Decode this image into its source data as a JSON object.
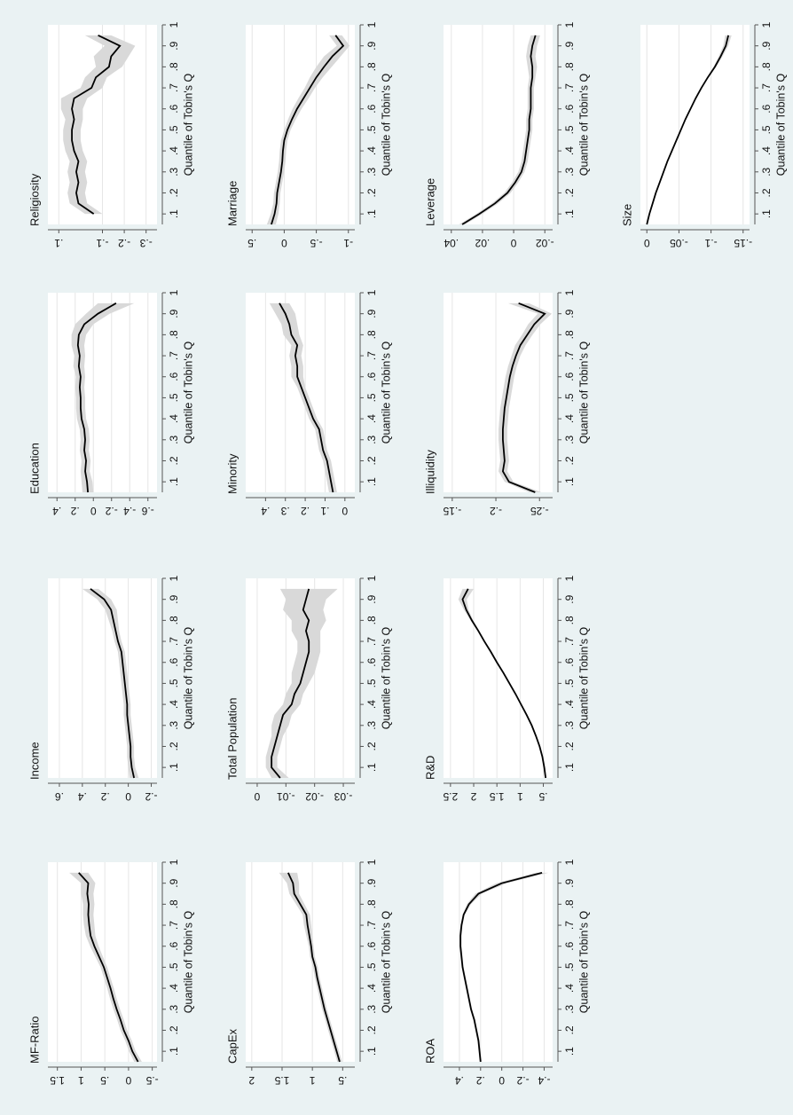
{
  "figure": {
    "xlabel": "Quantile of Tobin's Q",
    "x_ticks": [
      0.1,
      0.2,
      0.3,
      0.4,
      0.5,
      0.6,
      0.7,
      0.8,
      0.9,
      1
    ],
    "x_tick_labels": [
      ".1",
      ".2",
      ".3",
      ".4",
      ".5",
      ".6",
      ".7",
      ".8",
      ".9",
      "1"
    ],
    "xlim": [
      0.05,
      1.0
    ],
    "colors": {
      "background": "#eaf2f3",
      "plot": "#ffffff",
      "line": "#000000",
      "ci_band": "#d9d9d9",
      "grid": "#e6e6e6"
    },
    "orientation": "rotated 90 degrees counter-clockwise"
  },
  "chart_data": [
    {
      "type": "line",
      "title": "Religiosity",
      "ylim": [
        -0.35,
        0.15
      ],
      "y_ticks": [
        0.1,
        -0.1,
        -0.2,
        -0.3
      ],
      "y_tick_labels": [
        ".1",
        "-.1",
        "-.2",
        "-.3"
      ],
      "x": [
        0.1,
        0.15,
        0.2,
        0.25,
        0.3,
        0.35,
        0.4,
        0.45,
        0.5,
        0.55,
        0.6,
        0.65,
        0.7,
        0.75,
        0.8,
        0.85,
        0.9,
        0.95
      ],
      "y": [
        -0.06,
        0.01,
        0.02,
        0.01,
        0.02,
        0.01,
        0.03,
        0.04,
        0.04,
        0.03,
        0.04,
        0.03,
        -0.05,
        -0.07,
        -0.13,
        -0.14,
        -0.18,
        -0.08
      ],
      "ci_lower": [
        -0.1,
        -0.03,
        -0.02,
        -0.03,
        -0.02,
        -0.03,
        -0.01,
        0.0,
        0.0,
        -0.01,
        -0.01,
        -0.03,
        -0.1,
        -0.12,
        -0.19,
        -0.22,
        -0.25,
        -0.14
      ],
      "ci_upper": [
        -0.02,
        0.05,
        0.06,
        0.05,
        0.06,
        0.05,
        0.07,
        0.08,
        0.08,
        0.07,
        0.09,
        0.09,
        0.0,
        -0.02,
        -0.07,
        -0.06,
        -0.11,
        -0.02
      ]
    },
    {
      "type": "line",
      "title": "Education",
      "ylim": [
        -0.7,
        0.5
      ],
      "y_ticks": [
        0.4,
        0.2,
        0,
        -0.2,
        -0.4,
        -0.6
      ],
      "y_tick_labels": [
        ".4",
        ".2",
        "0",
        "-.2",
        "-.4",
        "-.6"
      ],
      "x": [
        0.05,
        0.1,
        0.15,
        0.2,
        0.25,
        0.3,
        0.35,
        0.4,
        0.45,
        0.5,
        0.55,
        0.6,
        0.65,
        0.7,
        0.75,
        0.8,
        0.85,
        0.9,
        0.95
      ],
      "y": [
        0.06,
        0.07,
        0.09,
        0.08,
        0.1,
        0.09,
        0.1,
        0.13,
        0.14,
        0.14,
        0.15,
        0.14,
        0.16,
        0.15,
        0.17,
        0.16,
        0.1,
        -0.05,
        -0.25
      ],
      "ci_lower": [
        0.0,
        0.01,
        0.04,
        0.03,
        0.05,
        0.04,
        0.05,
        0.08,
        0.09,
        0.09,
        0.1,
        0.09,
        0.1,
        0.09,
        0.1,
        0.08,
        0.0,
        -0.18,
        -0.45
      ],
      "ci_upper": [
        0.12,
        0.13,
        0.14,
        0.13,
        0.15,
        0.14,
        0.15,
        0.18,
        0.19,
        0.19,
        0.2,
        0.19,
        0.22,
        0.21,
        0.24,
        0.24,
        0.2,
        0.08,
        -0.05
      ]
    },
    {
      "type": "line",
      "title": "Income",
      "ylim": [
        -0.25,
        0.7
      ],
      "y_ticks": [
        0.6,
        0.4,
        0.2,
        0,
        -0.2
      ],
      "y_tick_labels": [
        ".6",
        ".4",
        ".2",
        "0",
        "-.2"
      ],
      "x": [
        0.05,
        0.1,
        0.15,
        0.2,
        0.25,
        0.3,
        0.35,
        0.4,
        0.45,
        0.5,
        0.55,
        0.6,
        0.65,
        0.7,
        0.75,
        0.8,
        0.85,
        0.9,
        0.95
      ],
      "y": [
        -0.05,
        -0.03,
        -0.02,
        -0.02,
        -0.01,
        0.0,
        0.01,
        0.01,
        0.02,
        0.03,
        0.04,
        0.05,
        0.06,
        0.09,
        0.11,
        0.13,
        0.15,
        0.21,
        0.33
      ],
      "ci_lower": [
        -0.09,
        -0.06,
        -0.05,
        -0.05,
        -0.04,
        -0.03,
        -0.02,
        -0.02,
        -0.01,
        0.0,
        0.01,
        0.02,
        0.03,
        0.06,
        0.08,
        0.09,
        0.1,
        0.15,
        0.26
      ],
      "ci_upper": [
        -0.01,
        0.0,
        0.01,
        0.01,
        0.02,
        0.03,
        0.04,
        0.04,
        0.05,
        0.06,
        0.07,
        0.08,
        0.09,
        0.12,
        0.14,
        0.17,
        0.2,
        0.27,
        0.4
      ]
    },
    {
      "type": "line",
      "title": "MF-Ratio",
      "ylim": [
        -0.6,
        1.7
      ],
      "y_ticks": [
        1.5,
        1,
        0.5,
        0,
        -0.5
      ],
      "y_tick_labels": [
        "1.5",
        "1",
        ".5",
        "0",
        "-.5"
      ],
      "x": [
        0.05,
        0.1,
        0.15,
        0.2,
        0.25,
        0.3,
        0.35,
        0.4,
        0.45,
        0.5,
        0.55,
        0.6,
        0.65,
        0.7,
        0.75,
        0.8,
        0.85,
        0.9,
        0.95
      ],
      "y": [
        -0.2,
        -0.08,
        0.0,
        0.1,
        0.17,
        0.25,
        0.32,
        0.38,
        0.45,
        0.52,
        0.62,
        0.72,
        0.8,
        0.83,
        0.85,
        0.84,
        0.87,
        0.85,
        1.05
      ],
      "ci_lower": [
        -0.28,
        -0.15,
        -0.07,
        0.03,
        0.1,
        0.18,
        0.25,
        0.31,
        0.38,
        0.45,
        0.54,
        0.63,
        0.7,
        0.72,
        0.74,
        0.72,
        0.74,
        0.7,
        0.85
      ],
      "ci_upper": [
        -0.12,
        -0.01,
        0.07,
        0.17,
        0.24,
        0.32,
        0.39,
        0.45,
        0.52,
        0.59,
        0.7,
        0.81,
        0.9,
        0.94,
        0.96,
        0.96,
        1.0,
        1.0,
        1.25
      ]
    },
    {
      "type": "line",
      "title": "Marriage",
      "ylim": [
        -1.1,
        0.6
      ],
      "y_ticks": [
        0.5,
        0,
        -0.5,
        -1
      ],
      "y_tick_labels": [
        ".5",
        "0",
        "-.5",
        "-1"
      ],
      "x": [
        0.05,
        0.1,
        0.15,
        0.2,
        0.25,
        0.3,
        0.35,
        0.4,
        0.45,
        0.5,
        0.55,
        0.6,
        0.65,
        0.7,
        0.75,
        0.8,
        0.85,
        0.9,
        0.95
      ],
      "y": [
        0.2,
        0.15,
        0.12,
        0.11,
        0.08,
        0.05,
        0.03,
        0.02,
        0.0,
        -0.05,
        -0.12,
        -0.2,
        -0.3,
        -0.4,
        -0.5,
        -0.62,
        -0.75,
        -0.92,
        -0.8
      ],
      "ci_lower": [
        0.13,
        0.09,
        0.07,
        0.06,
        0.03,
        0.0,
        -0.02,
        -0.03,
        -0.05,
        -0.1,
        -0.18,
        -0.27,
        -0.38,
        -0.48,
        -0.6,
        -0.74,
        -0.88,
        -1.02,
        -0.9
      ],
      "ci_upper": [
        0.27,
        0.21,
        0.17,
        0.16,
        0.13,
        0.1,
        0.08,
        0.07,
        0.05,
        0.0,
        -0.06,
        -0.13,
        -0.22,
        -0.32,
        -0.4,
        -0.5,
        -0.62,
        -0.82,
        -0.7
      ]
    },
    {
      "type": "line",
      "title": "Minority",
      "ylim": [
        -0.05,
        0.5
      ],
      "y_ticks": [
        0.4,
        0.3,
        0.2,
        0.1,
        0
      ],
      "y_tick_labels": [
        ".4",
        ".3",
        ".2",
        ".1",
        "0"
      ],
      "x": [
        0.05,
        0.1,
        0.15,
        0.2,
        0.25,
        0.3,
        0.35,
        0.4,
        0.45,
        0.5,
        0.55,
        0.6,
        0.65,
        0.7,
        0.75,
        0.8,
        0.85,
        0.9,
        0.95
      ],
      "y": [
        0.06,
        0.07,
        0.08,
        0.09,
        0.11,
        0.12,
        0.13,
        0.16,
        0.18,
        0.2,
        0.22,
        0.24,
        0.24,
        0.25,
        0.24,
        0.27,
        0.28,
        0.3,
        0.33
      ],
      "ci_lower": [
        0.04,
        0.05,
        0.06,
        0.07,
        0.09,
        0.1,
        0.11,
        0.14,
        0.16,
        0.18,
        0.2,
        0.21,
        0.21,
        0.22,
        0.21,
        0.23,
        0.24,
        0.25,
        0.28
      ],
      "ci_upper": [
        0.08,
        0.09,
        0.1,
        0.11,
        0.13,
        0.14,
        0.15,
        0.18,
        0.2,
        0.22,
        0.24,
        0.27,
        0.27,
        0.28,
        0.27,
        0.31,
        0.32,
        0.35,
        0.38
      ]
    },
    {
      "type": "line",
      "title": "Total Population",
      "ylim": [
        -0.034,
        0.004
      ],
      "y_ticks": [
        0,
        -0.01,
        -0.02,
        -0.03
      ],
      "y_tick_labels": [
        "0",
        "-.01",
        "-.02",
        "-.03"
      ],
      "x": [
        0.05,
        0.1,
        0.15,
        0.2,
        0.25,
        0.3,
        0.35,
        0.4,
        0.45,
        0.5,
        0.55,
        0.6,
        0.65,
        0.7,
        0.75,
        0.8,
        0.85,
        0.9,
        0.95
      ],
      "y": [
        -0.008,
        -0.005,
        -0.005,
        -0.006,
        -0.007,
        -0.008,
        -0.009,
        -0.012,
        -0.013,
        -0.015,
        -0.016,
        -0.017,
        -0.018,
        -0.018,
        -0.017,
        -0.018,
        -0.016,
        -0.017,
        -0.018
      ],
      "ci_lower": [
        -0.011,
        -0.007,
        -0.007,
        -0.008,
        -0.009,
        -0.011,
        -0.012,
        -0.015,
        -0.016,
        -0.018,
        -0.02,
        -0.021,
        -0.022,
        -0.022,
        -0.022,
        -0.024,
        -0.023,
        -0.024,
        -0.028
      ],
      "ci_upper": [
        -0.005,
        -0.003,
        -0.003,
        -0.004,
        -0.005,
        -0.005,
        -0.006,
        -0.009,
        -0.01,
        -0.012,
        -0.012,
        -0.013,
        -0.014,
        -0.014,
        -0.012,
        -0.012,
        -0.009,
        -0.01,
        -0.008
      ]
    },
    {
      "type": "line",
      "title": "CapEx",
      "ylim": [
        0.3,
        2.1
      ],
      "y_ticks": [
        2,
        1.5,
        1,
        0.5
      ],
      "y_tick_labels": [
        "2",
        "1.5",
        "1",
        ".5"
      ],
      "x": [
        0.05,
        0.1,
        0.15,
        0.2,
        0.25,
        0.3,
        0.35,
        0.4,
        0.45,
        0.5,
        0.55,
        0.6,
        0.65,
        0.7,
        0.75,
        0.8,
        0.85,
        0.9,
        0.95
      ],
      "y": [
        0.55,
        0.6,
        0.65,
        0.7,
        0.75,
        0.8,
        0.84,
        0.88,
        0.92,
        0.95,
        1.0,
        1.02,
        1.05,
        1.08,
        1.1,
        1.2,
        1.3,
        1.32,
        1.4
      ],
      "ci_lower": [
        0.51,
        0.56,
        0.61,
        0.66,
        0.71,
        0.76,
        0.8,
        0.84,
        0.88,
        0.91,
        0.96,
        0.98,
        1.0,
        1.02,
        1.04,
        1.13,
        1.22,
        1.22,
        1.25
      ],
      "ci_upper": [
        0.59,
        0.64,
        0.69,
        0.74,
        0.79,
        0.84,
        0.88,
        0.92,
        0.96,
        0.99,
        1.04,
        1.06,
        1.1,
        1.14,
        1.16,
        1.27,
        1.38,
        1.42,
        1.55
      ]
    },
    {
      "type": "line",
      "title": "Leverage",
      "ylim": [
        -0.025,
        0.045
      ],
      "y_ticks": [
        0.04,
        0.02,
        0,
        -0.02
      ],
      "y_tick_labels": [
        ".04",
        ".02",
        "0",
        "-.02"
      ],
      "x": [
        0.05,
        0.1,
        0.15,
        0.2,
        0.25,
        0.3,
        0.35,
        0.4,
        0.45,
        0.5,
        0.55,
        0.6,
        0.65,
        0.7,
        0.75,
        0.8,
        0.85,
        0.9,
        0.95
      ],
      "y": [
        0.033,
        0.022,
        0.012,
        0.004,
        -0.001,
        -0.005,
        -0.007,
        -0.008,
        -0.009,
        -0.01,
        -0.01,
        -0.011,
        -0.011,
        -0.011,
        -0.012,
        -0.012,
        -0.011,
        -0.012,
        -0.014
      ],
      "ci_lower": [
        0.031,
        0.02,
        0.01,
        0.002,
        -0.003,
        -0.007,
        -0.009,
        -0.01,
        -0.011,
        -0.012,
        -0.012,
        -0.013,
        -0.013,
        -0.013,
        -0.014,
        -0.015,
        -0.014,
        -0.015,
        -0.017
      ],
      "ci_upper": [
        0.035,
        0.024,
        0.014,
        0.006,
        0.001,
        -0.003,
        -0.005,
        -0.006,
        -0.007,
        -0.008,
        -0.008,
        -0.009,
        -0.009,
        -0.009,
        -0.01,
        -0.009,
        -0.008,
        -0.009,
        -0.011
      ]
    },
    {
      "type": "line",
      "title": "Illiquidity",
      "ylim": [
        -0.265,
        -0.14
      ],
      "y_ticks": [
        -0.15,
        -0.2,
        -0.25
      ],
      "y_tick_labels": [
        "-.15",
        "-.2",
        "-.25"
      ],
      "x": [
        0.05,
        0.1,
        0.15,
        0.2,
        0.25,
        0.3,
        0.35,
        0.4,
        0.45,
        0.5,
        0.55,
        0.6,
        0.65,
        0.7,
        0.75,
        0.8,
        0.85,
        0.9,
        0.95
      ],
      "y": [
        -0.245,
        -0.215,
        -0.208,
        -0.21,
        -0.209,
        -0.208,
        -0.208,
        -0.209,
        -0.21,
        -0.212,
        -0.214,
        -0.216,
        -0.219,
        -0.223,
        -0.228,
        -0.236,
        -0.244,
        -0.256,
        -0.226
      ],
      "ci_lower": [
        -0.252,
        -0.22,
        -0.213,
        -0.215,
        -0.214,
        -0.213,
        -0.213,
        -0.214,
        -0.215,
        -0.217,
        -0.219,
        -0.221,
        -0.224,
        -0.228,
        -0.234,
        -0.242,
        -0.251,
        -0.264,
        -0.238
      ],
      "ci_upper": [
        -0.238,
        -0.21,
        -0.203,
        -0.205,
        -0.204,
        -0.203,
        -0.203,
        -0.204,
        -0.205,
        -0.207,
        -0.209,
        -0.211,
        -0.214,
        -0.218,
        -0.222,
        -0.23,
        -0.237,
        -0.248,
        -0.214
      ]
    },
    {
      "type": "line",
      "title": "R&D",
      "ylim": [
        0.3,
        2.65
      ],
      "y_ticks": [
        2.5,
        2,
        1.5,
        1,
        0.5
      ],
      "y_tick_labels": [
        "2.5",
        "2",
        "1.5",
        "1",
        ".5"
      ],
      "x": [
        0.05,
        0.1,
        0.15,
        0.2,
        0.25,
        0.3,
        0.35,
        0.4,
        0.45,
        0.5,
        0.55,
        0.6,
        0.65,
        0.7,
        0.75,
        0.8,
        0.85,
        0.9,
        0.95
      ],
      "y": [
        0.45,
        0.48,
        0.52,
        0.58,
        0.66,
        0.75,
        0.86,
        0.98,
        1.1,
        1.23,
        1.36,
        1.5,
        1.63,
        1.77,
        1.9,
        2.04,
        2.16,
        2.24,
        2.12
      ],
      "ci_lower": [
        0.43,
        0.46,
        0.5,
        0.56,
        0.64,
        0.73,
        0.84,
        0.96,
        1.08,
        1.21,
        1.34,
        1.48,
        1.61,
        1.75,
        1.88,
        2.01,
        2.11,
        2.15,
        2.0
      ],
      "ci_upper": [
        0.47,
        0.5,
        0.54,
        0.6,
        0.68,
        0.77,
        0.88,
        1.0,
        1.12,
        1.25,
        1.38,
        1.52,
        1.65,
        1.79,
        1.92,
        2.07,
        2.21,
        2.33,
        2.24
      ]
    },
    {
      "type": "line",
      "title": "ROA",
      "ylim": [
        -0.48,
        0.55
      ],
      "y_ticks": [
        0.4,
        0.2,
        0,
        -0.2,
        -0.4
      ],
      "y_tick_labels": [
        ".4",
        ".2",
        "0",
        "-.2",
        "-.4"
      ],
      "x": [
        0.05,
        0.1,
        0.15,
        0.2,
        0.25,
        0.3,
        0.35,
        0.4,
        0.45,
        0.5,
        0.55,
        0.6,
        0.65,
        0.7,
        0.75,
        0.8,
        0.85,
        0.9,
        0.95
      ],
      "y": [
        0.2,
        0.21,
        0.22,
        0.24,
        0.26,
        0.29,
        0.31,
        0.33,
        0.35,
        0.37,
        0.38,
        0.39,
        0.39,
        0.38,
        0.36,
        0.31,
        0.22,
        0.0,
        -0.38
      ],
      "ci_lower": [
        0.19,
        0.2,
        0.21,
        0.23,
        0.25,
        0.28,
        0.3,
        0.32,
        0.34,
        0.36,
        0.37,
        0.38,
        0.38,
        0.37,
        0.35,
        0.29,
        0.19,
        -0.05,
        -0.44
      ],
      "ci_upper": [
        0.21,
        0.22,
        0.23,
        0.25,
        0.27,
        0.3,
        0.32,
        0.34,
        0.36,
        0.38,
        0.39,
        0.4,
        0.4,
        0.39,
        0.37,
        0.33,
        0.25,
        0.05,
        -0.32
      ]
    },
    {
      "type": "line",
      "title": "Size",
      "ylim": [
        -0.16,
        0.01
      ],
      "y_ticks": [
        0,
        -0.05,
        -0.1,
        -0.15
      ],
      "y_tick_labels": [
        "0",
        "-.05",
        "-.1",
        "-.15"
      ],
      "x": [
        0.05,
        0.1,
        0.15,
        0.2,
        0.25,
        0.3,
        0.35,
        0.4,
        0.45,
        0.5,
        0.55,
        0.6,
        0.65,
        0.7,
        0.75,
        0.8,
        0.85,
        0.9,
        0.95
      ],
      "y": [
        0.0,
        -0.004,
        -0.009,
        -0.014,
        -0.02,
        -0.026,
        -0.032,
        -0.039,
        -0.046,
        -0.053,
        -0.06,
        -0.068,
        -0.076,
        -0.085,
        -0.095,
        -0.106,
        -0.115,
        -0.123,
        -0.127
      ],
      "ci_lower": [
        -0.001,
        -0.005,
        -0.01,
        -0.015,
        -0.021,
        -0.027,
        -0.033,
        -0.04,
        -0.047,
        -0.054,
        -0.061,
        -0.069,
        -0.077,
        -0.086,
        -0.096,
        -0.108,
        -0.118,
        -0.127,
        -0.132
      ],
      "ci_upper": [
        0.001,
        -0.003,
        -0.008,
        -0.013,
        -0.019,
        -0.025,
        -0.031,
        -0.038,
        -0.045,
        -0.052,
        -0.059,
        -0.067,
        -0.075,
        -0.084,
        -0.094,
        -0.104,
        -0.112,
        -0.119,
        -0.122
      ]
    }
  ]
}
